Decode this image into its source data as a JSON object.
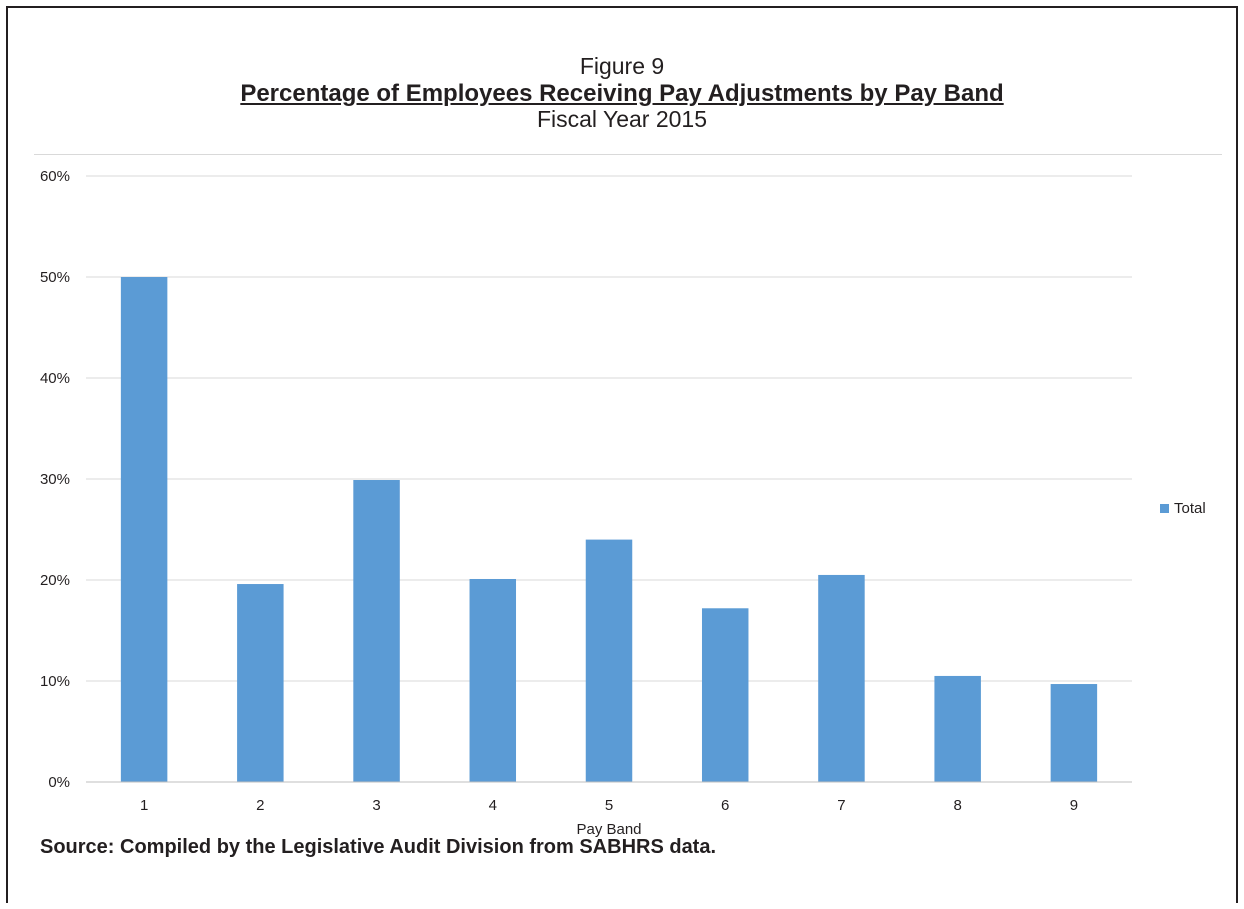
{
  "figure_label": "Figure 9",
  "source_note": "Source: Compiled by the Legislative Audit Division from SABHRS data.",
  "colors": {
    "bar": "#5b9bd5",
    "grid": "#d9d9d9",
    "axis": "#bfbfbf",
    "text": "#231f20"
  },
  "chart_data": {
    "type": "bar",
    "title": "Percentage of Employees Receiving Pay Adjustments by Pay Band",
    "subtitle": "Fiscal Year 2015",
    "xlabel": "Pay Band",
    "ylabel": "",
    "categories": [
      "1",
      "2",
      "3",
      "4",
      "5",
      "6",
      "7",
      "8",
      "9"
    ],
    "series": [
      {
        "name": "Total",
        "values": [
          50,
          19.6,
          29.9,
          20.1,
          24,
          17.2,
          20.5,
          10.5,
          9.7
        ]
      }
    ],
    "ylim": [
      0,
      60
    ],
    "yticks": [
      0,
      10,
      20,
      30,
      40,
      50,
      60
    ],
    "ytick_labels": [
      "0%",
      "10%",
      "20%",
      "30%",
      "40%",
      "50%",
      "60%"
    ],
    "grid": true,
    "legend_position": "right"
  }
}
